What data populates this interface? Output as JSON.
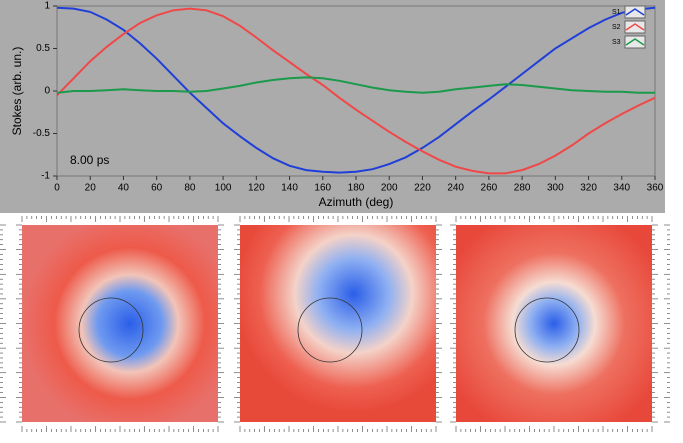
{
  "chart_data": {
    "type": "line",
    "xlabel": "Azimuth (deg)",
    "ylabel": "Stokes (arb. un.)",
    "annotation": "8.00 ps",
    "x": [
      0,
      10,
      20,
      30,
      40,
      50,
      60,
      70,
      80,
      90,
      100,
      110,
      120,
      130,
      140,
      150,
      160,
      170,
      180,
      190,
      200,
      210,
      220,
      230,
      240,
      250,
      260,
      270,
      280,
      290,
      300,
      310,
      320,
      330,
      340,
      350,
      360
    ],
    "series": [
      {
        "name": "S1",
        "color": "#1f3fd8",
        "values": [
          0.98,
          0.97,
          0.93,
          0.84,
          0.72,
          0.56,
          0.38,
          0.18,
          -0.02,
          -0.2,
          -0.38,
          -0.53,
          -0.67,
          -0.79,
          -0.88,
          -0.93,
          -0.95,
          -0.96,
          -0.95,
          -0.92,
          -0.86,
          -0.78,
          -0.67,
          -0.54,
          -0.39,
          -0.24,
          -0.1,
          0.05,
          0.2,
          0.35,
          0.5,
          0.62,
          0.74,
          0.84,
          0.92,
          0.96,
          0.98
        ]
      },
      {
        "name": "S2",
        "color": "#f04848",
        "values": [
          -0.05,
          0.15,
          0.35,
          0.52,
          0.67,
          0.8,
          0.89,
          0.95,
          0.97,
          0.95,
          0.88,
          0.77,
          0.63,
          0.48,
          0.34,
          0.2,
          0.07,
          -0.08,
          -0.22,
          -0.35,
          -0.48,
          -0.6,
          -0.71,
          -0.81,
          -0.89,
          -0.94,
          -0.97,
          -0.97,
          -0.93,
          -0.86,
          -0.76,
          -0.64,
          -0.5,
          -0.38,
          -0.27,
          -0.17,
          -0.08
        ]
      },
      {
        "name": "S3",
        "color": "#1a9a4a",
        "values": [
          -0.02,
          0,
          0,
          0.01,
          0.02,
          0.01,
          0,
          0,
          -0.01,
          0,
          0.03,
          0.06,
          0.1,
          0.13,
          0.15,
          0.16,
          0.15,
          0.12,
          0.08,
          0.04,
          0.01,
          -0.01,
          -0.02,
          -0.01,
          0.02,
          0.04,
          0.06,
          0.08,
          0.07,
          0.05,
          0.03,
          0.01,
          0,
          -0.01,
          -0.01,
          -0.02,
          -0.02
        ]
      }
    ],
    "xlim": [
      0,
      360
    ],
    "ylim": [
      -1,
      1
    ],
    "xticks": [
      0,
      20,
      40,
      60,
      80,
      100,
      120,
      140,
      160,
      180,
      200,
      220,
      240,
      260,
      280,
      300,
      320,
      340,
      360
    ],
    "yticks": [
      -1,
      -0.5,
      0,
      0.5,
      1
    ],
    "legend": "upper right"
  }
}
